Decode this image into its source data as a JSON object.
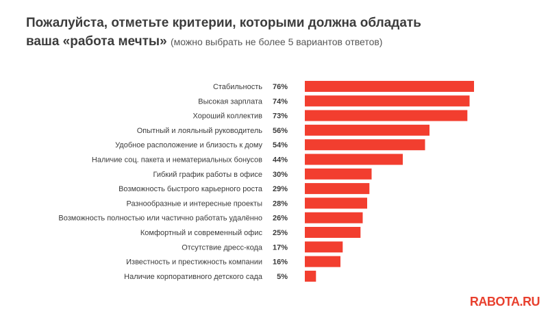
{
  "header": {
    "title_line1": "Пожалуйста, отметьте критерии, которыми должна обладать",
    "title_line2": "ваша «работа мечты»",
    "subtitle": "(можно выбрать не более 5 вариантов ответов)"
  },
  "logo": "RABOTA.RU",
  "colors": {
    "bar": "#f23e2f",
    "text": "#3a3a3a"
  },
  "chart_data": {
    "type": "bar",
    "orientation": "horizontal",
    "title": "Пожалуйста, отметьте критерии, которыми должна обладать ваша «работа мечты» (можно выбрать не более 5 вариантов ответов)",
    "categories": [
      "Стабильность",
      "Высокая зарплата",
      "Хороший коллектив",
      "Опытный и лояльный руководитель",
      "Удобное расположение и близость к дому",
      "Наличие соц. пакета и нематериальных бонусов",
      "Гибкий график работы в офисе",
      "Возможность быстрого карьерного роста",
      "Разнообразные и интересные проекты",
      "Возможность полностью или частично работать удалённо",
      "Комфортный и современный офис",
      "Отсутствие дресс-кода",
      "Известность и престижность компании",
      "Наличие корпоративного детского сада"
    ],
    "values": [
      76,
      74,
      73,
      56,
      54,
      44,
      30,
      29,
      28,
      26,
      25,
      17,
      16,
      5
    ],
    "value_labels": [
      "76%",
      "74%",
      "73%",
      "56%",
      "54%",
      "44%",
      "30%",
      "29%",
      "28%",
      "26%",
      "25%",
      "17%",
      "16%",
      "5%"
    ],
    "unit": "%",
    "xlim": [
      0,
      76
    ]
  }
}
